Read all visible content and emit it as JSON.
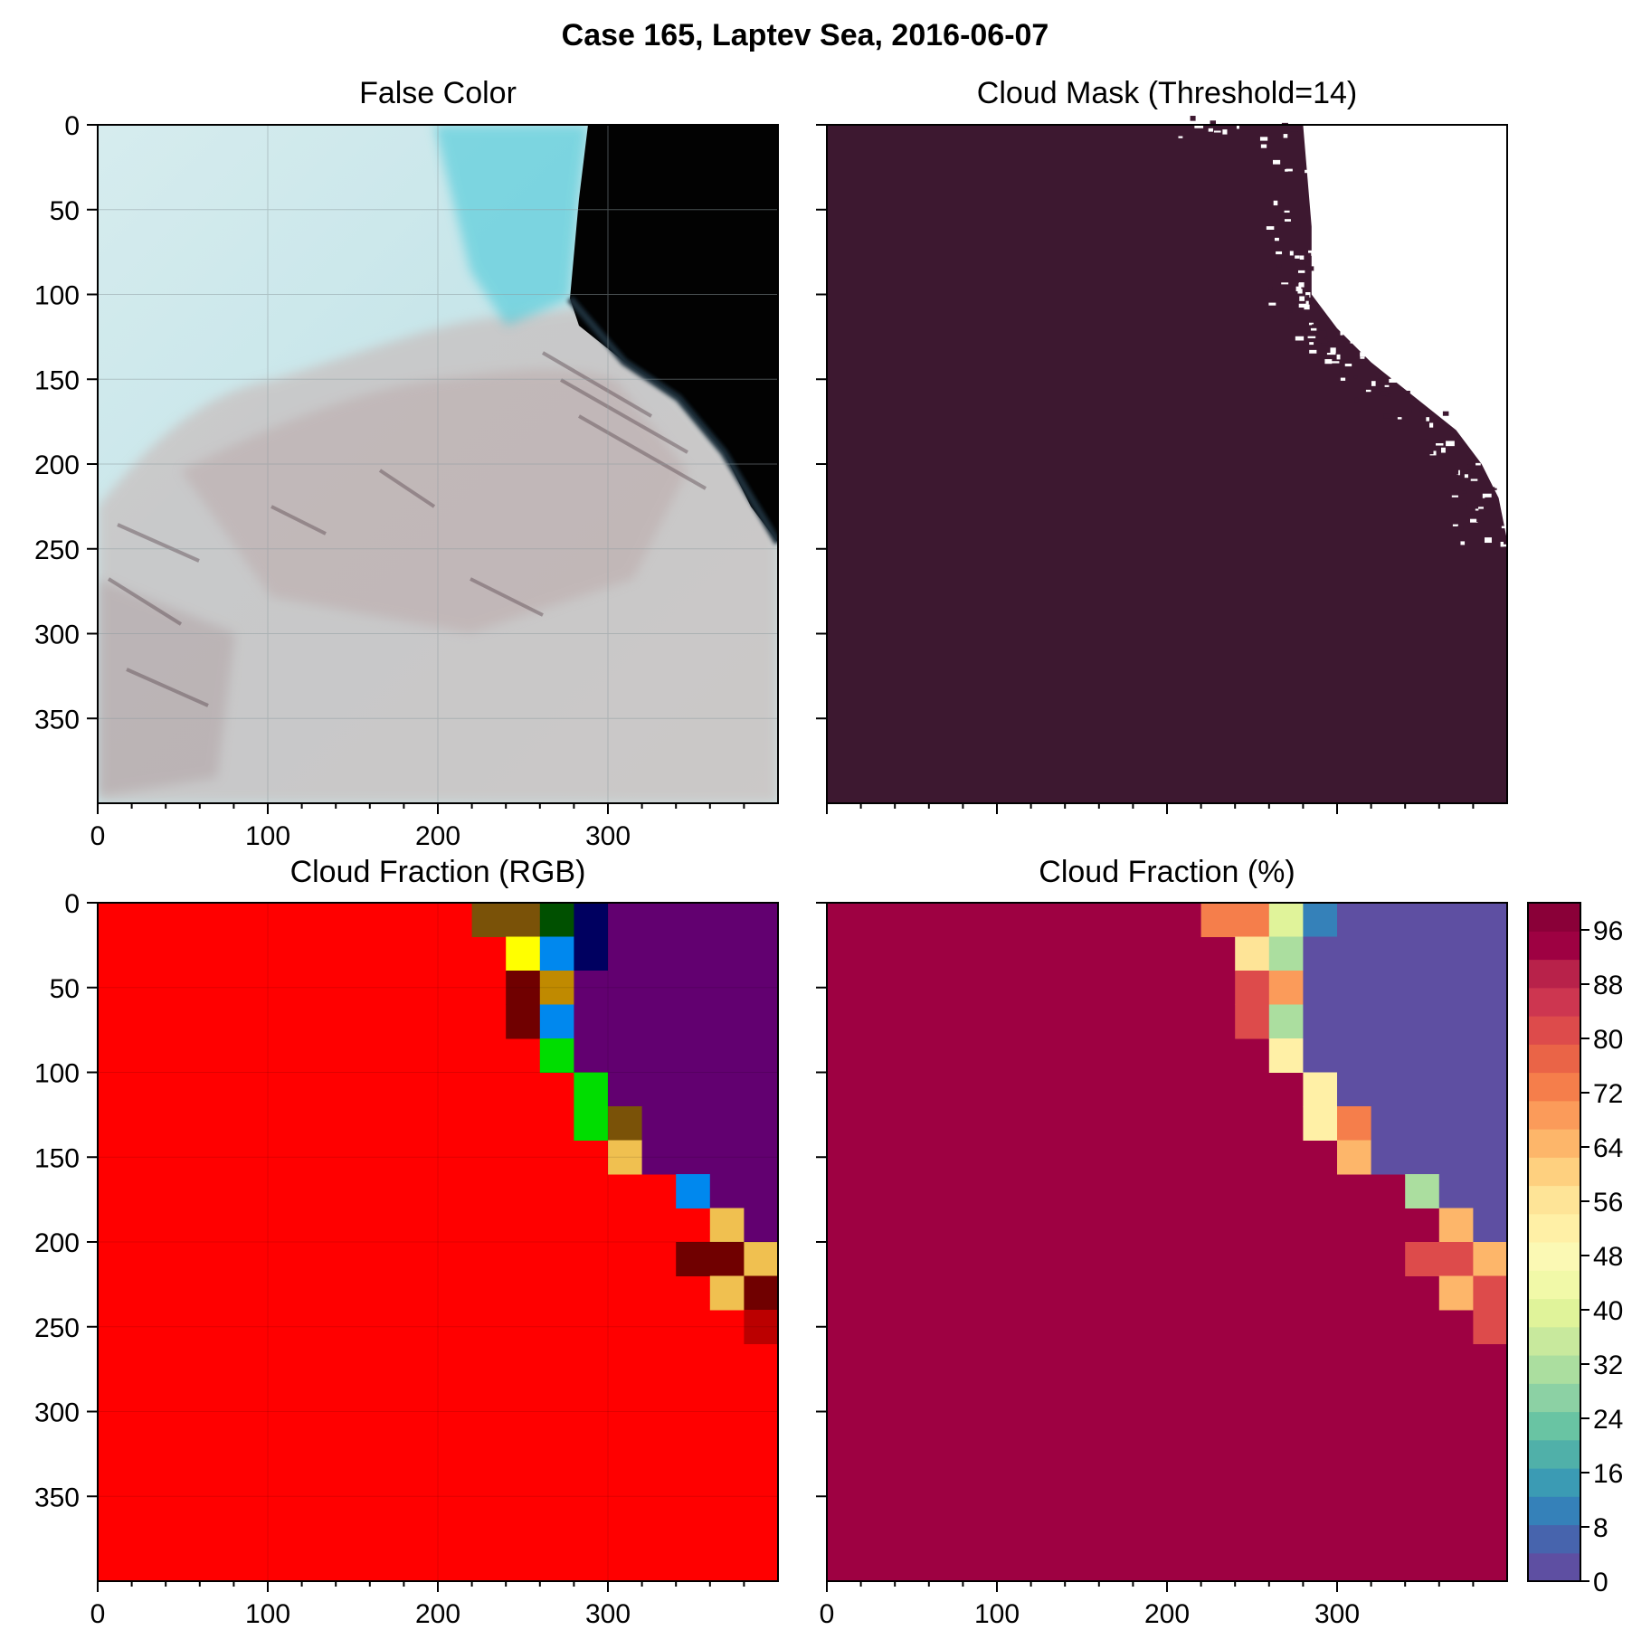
{
  "figure": {
    "title": "Case 165, Laptev Sea, 2016-06-07"
  },
  "chart_data": [
    {
      "type": "heatmap",
      "title": "False Color",
      "xlim": [
        0,
        400
      ],
      "ylim": [
        400,
        0
      ],
      "x_ticks": [
        "0",
        "100",
        "200",
        "300"
      ],
      "y_ticks": [
        "0",
        "50",
        "100",
        "150",
        "200",
        "250",
        "300",
        "350"
      ],
      "grid": true,
      "content": "satellite false-color image: light cyan sea ice with pinkish-brown cloud streets, black open water in upper right"
    },
    {
      "type": "heatmap",
      "title": "Cloud Mask (Threshold=14)",
      "xlim": [
        0,
        400
      ],
      "ylim": [
        400,
        0
      ],
      "x_ticks": [
        "",
        "",
        "",
        ""
      ],
      "y_ticks": [
        "",
        "",
        "",
        "",
        "",
        "",
        "",
        ""
      ],
      "colors": {
        "cloud": "#3d1830",
        "clear": "#ffffff"
      },
      "clear_region_boundary": [
        [
          220,
          0
        ],
        [
          280,
          0
        ],
        [
          285,
          60
        ],
        [
          285,
          100
        ],
        [
          300,
          120
        ],
        [
          320,
          140
        ],
        [
          345,
          160
        ],
        [
          370,
          180
        ],
        [
          385,
          200
        ],
        [
          395,
          220
        ],
        [
          400,
          245
        ],
        [
          400,
          0
        ]
      ]
    },
    {
      "type": "heatmap",
      "title": "Cloud Fraction (RGB)",
      "xlim": [
        0,
        400
      ],
      "ylim": [
        400,
        0
      ],
      "x_ticks": [
        "0",
        "100",
        "200",
        "300"
      ],
      "y_ticks": [
        "0",
        "50",
        "100",
        "150",
        "200",
        "250",
        "300",
        "350"
      ],
      "background": "#ff0000",
      "cells": [
        {
          "x": 220,
          "y": 0,
          "w": 40,
          "h": 20,
          "color": "#7a5208"
        },
        {
          "x": 260,
          "y": 0,
          "w": 20,
          "h": 20,
          "color": "#005000"
        },
        {
          "x": 280,
          "y": 0,
          "w": 20,
          "h": 20,
          "color": "#000060"
        },
        {
          "x": 300,
          "y": 0,
          "w": 100,
          "h": 20,
          "color": "#620070"
        },
        {
          "x": 240,
          "y": 20,
          "w": 20,
          "h": 20,
          "color": "#ffff00"
        },
        {
          "x": 260,
          "y": 20,
          "w": 20,
          "h": 20,
          "color": "#0088ee"
        },
        {
          "x": 280,
          "y": 20,
          "w": 20,
          "h": 20,
          "color": "#000060"
        },
        {
          "x": 300,
          "y": 20,
          "w": 100,
          "h": 20,
          "color": "#620070"
        },
        {
          "x": 240,
          "y": 40,
          "w": 20,
          "h": 20,
          "color": "#700000"
        },
        {
          "x": 260,
          "y": 40,
          "w": 20,
          "h": 20,
          "color": "#c08a00"
        },
        {
          "x": 280,
          "y": 40,
          "w": 120,
          "h": 20,
          "color": "#620070"
        },
        {
          "x": 240,
          "y": 60,
          "w": 20,
          "h": 20,
          "color": "#700000"
        },
        {
          "x": 260,
          "y": 60,
          "w": 20,
          "h": 20,
          "color": "#0088ee"
        },
        {
          "x": 280,
          "y": 60,
          "w": 120,
          "h": 20,
          "color": "#620070"
        },
        {
          "x": 260,
          "y": 80,
          "w": 20,
          "h": 20,
          "color": "#00dd00"
        },
        {
          "x": 280,
          "y": 80,
          "w": 120,
          "h": 20,
          "color": "#620070"
        },
        {
          "x": 280,
          "y": 100,
          "w": 20,
          "h": 20,
          "color": "#00dd00"
        },
        {
          "x": 300,
          "y": 100,
          "w": 100,
          "h": 20,
          "color": "#620070"
        },
        {
          "x": 280,
          "y": 120,
          "w": 20,
          "h": 20,
          "color": "#00dd00"
        },
        {
          "x": 300,
          "y": 120,
          "w": 20,
          "h": 20,
          "color": "#7a5208"
        },
        {
          "x": 320,
          "y": 120,
          "w": 80,
          "h": 20,
          "color": "#620070"
        },
        {
          "x": 300,
          "y": 140,
          "w": 20,
          "h": 20,
          "color": "#f0c050"
        },
        {
          "x": 320,
          "y": 140,
          "w": 80,
          "h": 20,
          "color": "#620070"
        },
        {
          "x": 340,
          "y": 160,
          "w": 20,
          "h": 20,
          "color": "#0088ee"
        },
        {
          "x": 360,
          "y": 160,
          "w": 40,
          "h": 20,
          "color": "#620070"
        },
        {
          "x": 360,
          "y": 180,
          "w": 20,
          "h": 20,
          "color": "#f0c050"
        },
        {
          "x": 380,
          "y": 180,
          "w": 20,
          "h": 20,
          "color": "#620070"
        },
        {
          "x": 340,
          "y": 200,
          "w": 40,
          "h": 20,
          "color": "#700000"
        },
        {
          "x": 380,
          "y": 200,
          "w": 20,
          "h": 20,
          "color": "#f0c050"
        },
        {
          "x": 360,
          "y": 220,
          "w": 20,
          "h": 20,
          "color": "#f0c050"
        },
        {
          "x": 380,
          "y": 220,
          "w": 20,
          "h": 20,
          "color": "#700000"
        },
        {
          "x": 380,
          "y": 240,
          "w": 20,
          "h": 20,
          "color": "#bb0000"
        }
      ]
    },
    {
      "type": "heatmap",
      "title": "Cloud Fraction (%)",
      "xlim": [
        0,
        400
      ],
      "ylim": [
        400,
        0
      ],
      "x_ticks": [
        "0",
        "100",
        "200",
        "300"
      ],
      "y_ticks": [
        "",
        "",
        "",
        "",
        "",
        "",
        "",
        ""
      ],
      "background_value": 100,
      "cells": [
        {
          "x": 220,
          "y": 0,
          "w": 40,
          "h": 20,
          "value": 76
        },
        {
          "x": 260,
          "y": 0,
          "w": 20,
          "h": 20,
          "value": 42
        },
        {
          "x": 280,
          "y": 0,
          "w": 20,
          "h": 20,
          "value": 12
        },
        {
          "x": 300,
          "y": 0,
          "w": 100,
          "h": 20,
          "value": 0
        },
        {
          "x": 240,
          "y": 20,
          "w": 20,
          "h": 20,
          "value": 59
        },
        {
          "x": 260,
          "y": 20,
          "w": 20,
          "h": 20,
          "value": 34
        },
        {
          "x": 280,
          "y": 20,
          "w": 120,
          "h": 20,
          "value": 0
        },
        {
          "x": 240,
          "y": 40,
          "w": 20,
          "h": 20,
          "value": 86
        },
        {
          "x": 260,
          "y": 40,
          "w": 20,
          "h": 20,
          "value": 71
        },
        {
          "x": 280,
          "y": 40,
          "w": 120,
          "h": 20,
          "value": 0
        },
        {
          "x": 240,
          "y": 60,
          "w": 20,
          "h": 20,
          "value": 86
        },
        {
          "x": 260,
          "y": 60,
          "w": 20,
          "h": 20,
          "value": 34
        },
        {
          "x": 280,
          "y": 60,
          "w": 120,
          "h": 20,
          "value": 0
        },
        {
          "x": 260,
          "y": 80,
          "w": 20,
          "h": 20,
          "value": 53
        },
        {
          "x": 280,
          "y": 80,
          "w": 120,
          "h": 20,
          "value": 0
        },
        {
          "x": 280,
          "y": 100,
          "w": 20,
          "h": 20,
          "value": 53
        },
        {
          "x": 300,
          "y": 100,
          "w": 100,
          "h": 20,
          "value": 0
        },
        {
          "x": 280,
          "y": 120,
          "w": 20,
          "h": 20,
          "value": 53
        },
        {
          "x": 300,
          "y": 120,
          "w": 20,
          "h": 20,
          "value": 76
        },
        {
          "x": 320,
          "y": 120,
          "w": 80,
          "h": 20,
          "value": 0
        },
        {
          "x": 300,
          "y": 140,
          "w": 20,
          "h": 20,
          "value": 66
        },
        {
          "x": 320,
          "y": 140,
          "w": 80,
          "h": 20,
          "value": 0
        },
        {
          "x": 340,
          "y": 160,
          "w": 20,
          "h": 20,
          "value": 34
        },
        {
          "x": 360,
          "y": 160,
          "w": 40,
          "h": 20,
          "value": 0
        },
        {
          "x": 360,
          "y": 180,
          "w": 20,
          "h": 20,
          "value": 68
        },
        {
          "x": 380,
          "y": 180,
          "w": 20,
          "h": 20,
          "value": 0
        },
        {
          "x": 340,
          "y": 200,
          "w": 40,
          "h": 20,
          "value": 86
        },
        {
          "x": 380,
          "y": 200,
          "w": 20,
          "h": 20,
          "value": 68
        },
        {
          "x": 360,
          "y": 220,
          "w": 20,
          "h": 20,
          "value": 68
        },
        {
          "x": 380,
          "y": 220,
          "w": 20,
          "h": 20,
          "value": 86
        },
        {
          "x": 380,
          "y": 240,
          "w": 20,
          "h": 20,
          "value": 86
        }
      ],
      "colorbar": {
        "range": [
          0,
          100
        ],
        "tick_labels": [
          "0",
          "8",
          "16",
          "24",
          "32",
          "40",
          "48",
          "56",
          "64",
          "72",
          "80",
          "88",
          "96"
        ],
        "levels": [
          "#5e4fa2",
          "#4764ad",
          "#3581b9",
          "#3b9bb4",
          "#50b0a9",
          "#69c4a3",
          "#8cd1a4",
          "#abde9f",
          "#c8e99d",
          "#e0f39a",
          "#f1f9a8",
          "#fbf9b4",
          "#fff0a6",
          "#fee497",
          "#fed07f",
          "#fdb66a",
          "#fb9b5a",
          "#f57e4b",
          "#ea6447",
          "#dd4b4b",
          "#cd3650",
          "#b8224a",
          "#9e0142",
          "#8a0038"
        ]
      }
    }
  ]
}
